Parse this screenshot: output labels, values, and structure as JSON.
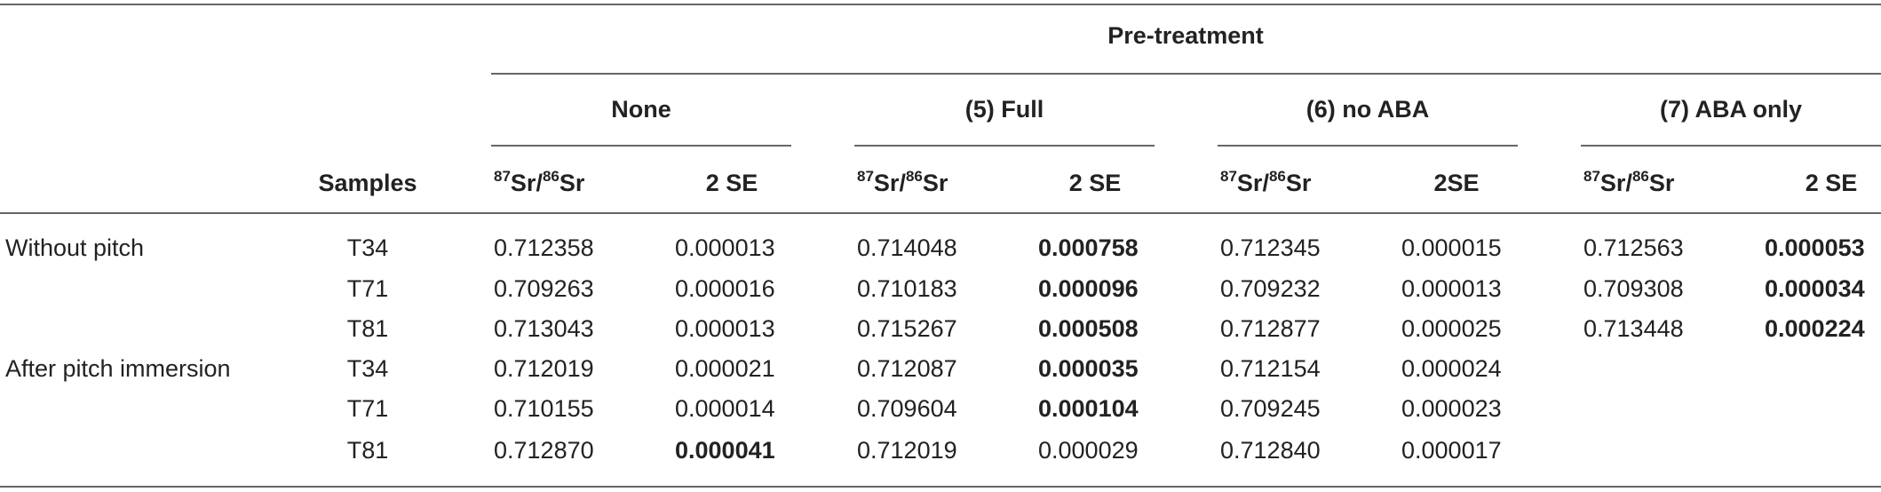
{
  "table": {
    "super_header": "Pre-treatment",
    "groups": [
      "None",
      "(5) Full",
      "(6) no ABA",
      "(7) ABA only"
    ],
    "samples_header": "Samples",
    "ratio_header": {
      "mass_a": "87",
      "el_a": "Sr/",
      "mass_b": "86",
      "el_b": "Sr"
    },
    "se_headers": [
      "2 SE",
      "2 SE",
      "2SE",
      "2 SE"
    ],
    "row_groups": [
      "Without pitch",
      "After pitch immersion"
    ],
    "rows": [
      {
        "sample": "T34",
        "none_ratio": "0.712358",
        "none_se": "0.000013",
        "full_ratio": "0.714048",
        "full_se": "0.000758",
        "noaba_ratio": "0.712345",
        "noaba_se": "0.000015",
        "abaonly_ratio": "0.712563",
        "abaonly_se": "0.000053"
      },
      {
        "sample": "T71",
        "none_ratio": "0.709263",
        "none_se": "0.000016",
        "full_ratio": "0.710183",
        "full_se": "0.000096",
        "noaba_ratio": "0.709232",
        "noaba_se": "0.000013",
        "abaonly_ratio": "0.709308",
        "abaonly_se": "0.000034"
      },
      {
        "sample": "T81",
        "none_ratio": "0.713043",
        "none_se": "0.000013",
        "full_ratio": "0.715267",
        "full_se": "0.000508",
        "noaba_ratio": "0.712877",
        "noaba_se": "0.000025",
        "abaonly_ratio": "0.713448",
        "abaonly_se": "0.000224"
      },
      {
        "sample": "T34",
        "none_ratio": "0.712019",
        "none_se": "0.000021",
        "full_ratio": "0.712087",
        "full_se": "0.000035",
        "noaba_ratio": "0.712154",
        "noaba_se": "0.000024",
        "abaonly_ratio": "",
        "abaonly_se": ""
      },
      {
        "sample": "T71",
        "none_ratio": "0.710155",
        "none_se": "0.000014",
        "full_ratio": "0.709604",
        "full_se": "0.000104",
        "noaba_ratio": "0.709245",
        "noaba_se": "0.000023",
        "abaonly_ratio": "",
        "abaonly_se": ""
      },
      {
        "sample": "T81",
        "none_ratio": "0.712870",
        "none_se": "0.000041",
        "full_ratio": "0.712019",
        "full_se": "0.000029",
        "noaba_ratio": "0.712840",
        "noaba_se": "0.000017",
        "abaonly_ratio": "",
        "abaonly_se": ""
      }
    ]
  }
}
